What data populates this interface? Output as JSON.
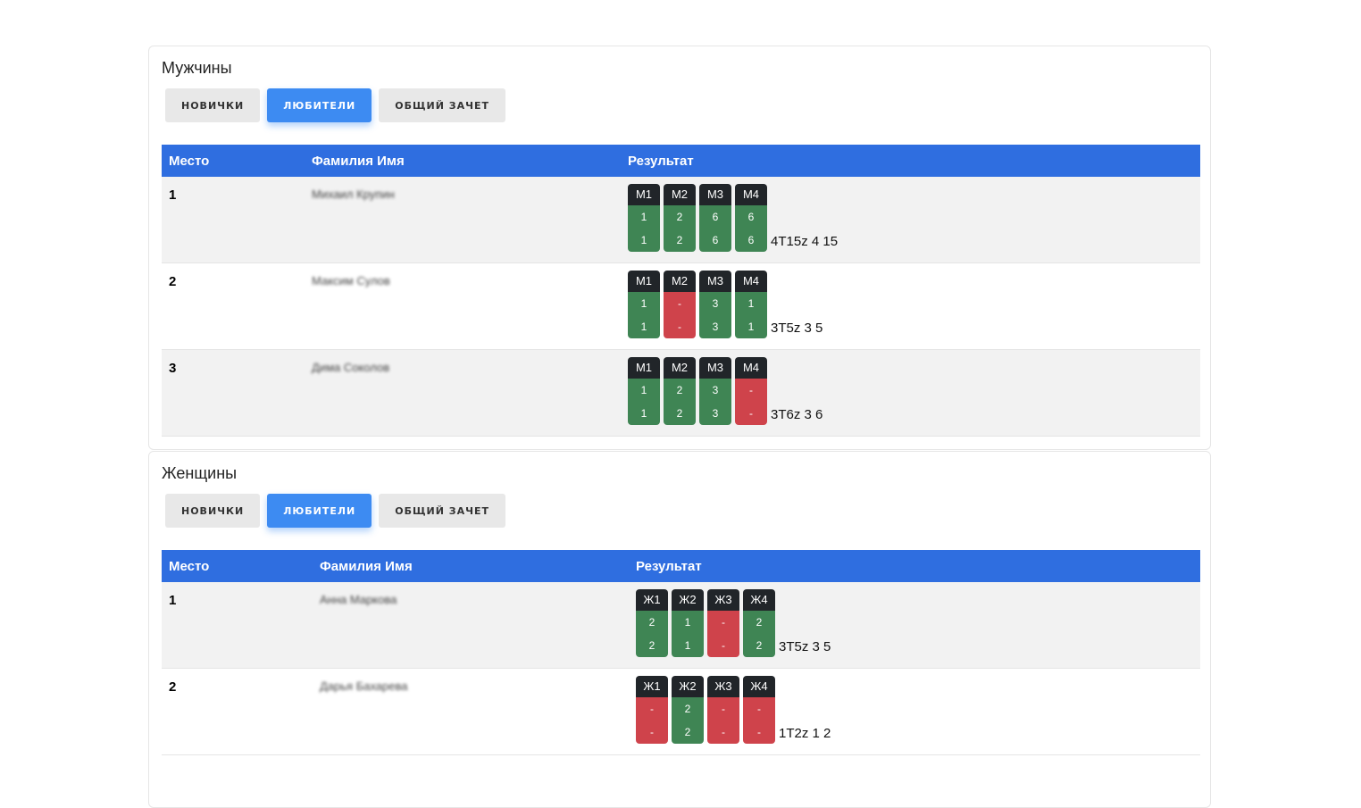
{
  "sections": [
    {
      "title": "Мужчины",
      "tabs": [
        "НОВИЧКИ",
        "ЛЮБИТЕЛИ",
        "ОБЩИЙ ЗАЧЕТ"
      ],
      "active_tab": 1,
      "headers": [
        "Место",
        "Фамилия Имя",
        "Результат"
      ],
      "rows": [
        {
          "place": "1",
          "name": "Михаил Крупин",
          "score": "4T15z 4 15",
          "badges": [
            {
              "label": "М1",
              "a": "1",
              "b": "1",
              "ok": true
            },
            {
              "label": "М2",
              "a": "2",
              "b": "2",
              "ok": true
            },
            {
              "label": "М3",
              "a": "6",
              "b": "6",
              "ok": true
            },
            {
              "label": "М4",
              "a": "6",
              "b": "6",
              "ok": true
            }
          ]
        },
        {
          "place": "2",
          "name": "Максим Сулов",
          "score": "3T5z 3 5",
          "badges": [
            {
              "label": "М1",
              "a": "1",
              "b": "1",
              "ok": true
            },
            {
              "label": "М2",
              "a": "-",
              "b": "-",
              "ok": false
            },
            {
              "label": "М3",
              "a": "3",
              "b": "3",
              "ok": true
            },
            {
              "label": "М4",
              "a": "1",
              "b": "1",
              "ok": true
            }
          ]
        },
        {
          "place": "3",
          "name": "Дима Соколов",
          "score": "3T6z 3 6",
          "badges": [
            {
              "label": "М1",
              "a": "1",
              "b": "1",
              "ok": true
            },
            {
              "label": "М2",
              "a": "2",
              "b": "2",
              "ok": true
            },
            {
              "label": "М3",
              "a": "3",
              "b": "3",
              "ok": true
            },
            {
              "label": "М4",
              "a": "-",
              "b": "-",
              "ok": false
            }
          ]
        }
      ]
    },
    {
      "title": "Женщины",
      "tabs": [
        "НОВИЧКИ",
        "ЛЮБИТЕЛИ",
        "ОБЩИЙ ЗАЧЕТ"
      ],
      "active_tab": 1,
      "headers": [
        "Место",
        "Фамилия Имя",
        "Результат"
      ],
      "rows": [
        {
          "place": "1",
          "name": "Анна Маркова",
          "score": "3T5z 3 5",
          "badges": [
            {
              "label": "Ж1",
              "a": "2",
              "b": "2",
              "ok": true
            },
            {
              "label": "Ж2",
              "a": "1",
              "b": "1",
              "ok": true
            },
            {
              "label": "Ж3",
              "a": "-",
              "b": "-",
              "ok": false
            },
            {
              "label": "Ж4",
              "a": "2",
              "b": "2",
              "ok": true
            }
          ]
        },
        {
          "place": "2",
          "name": "Дарья Бахарева",
          "score": "1T2z 1 2",
          "badges": [
            {
              "label": "Ж1",
              "a": "-",
              "b": "-",
              "ok": false
            },
            {
              "label": "Ж2",
              "a": "2",
              "b": "2",
              "ok": true
            },
            {
              "label": "Ж3",
              "a": "-",
              "b": "-",
              "ok": false
            },
            {
              "label": "Ж4",
              "a": "-",
              "b": "-",
              "ok": false
            }
          ]
        }
      ]
    }
  ]
}
